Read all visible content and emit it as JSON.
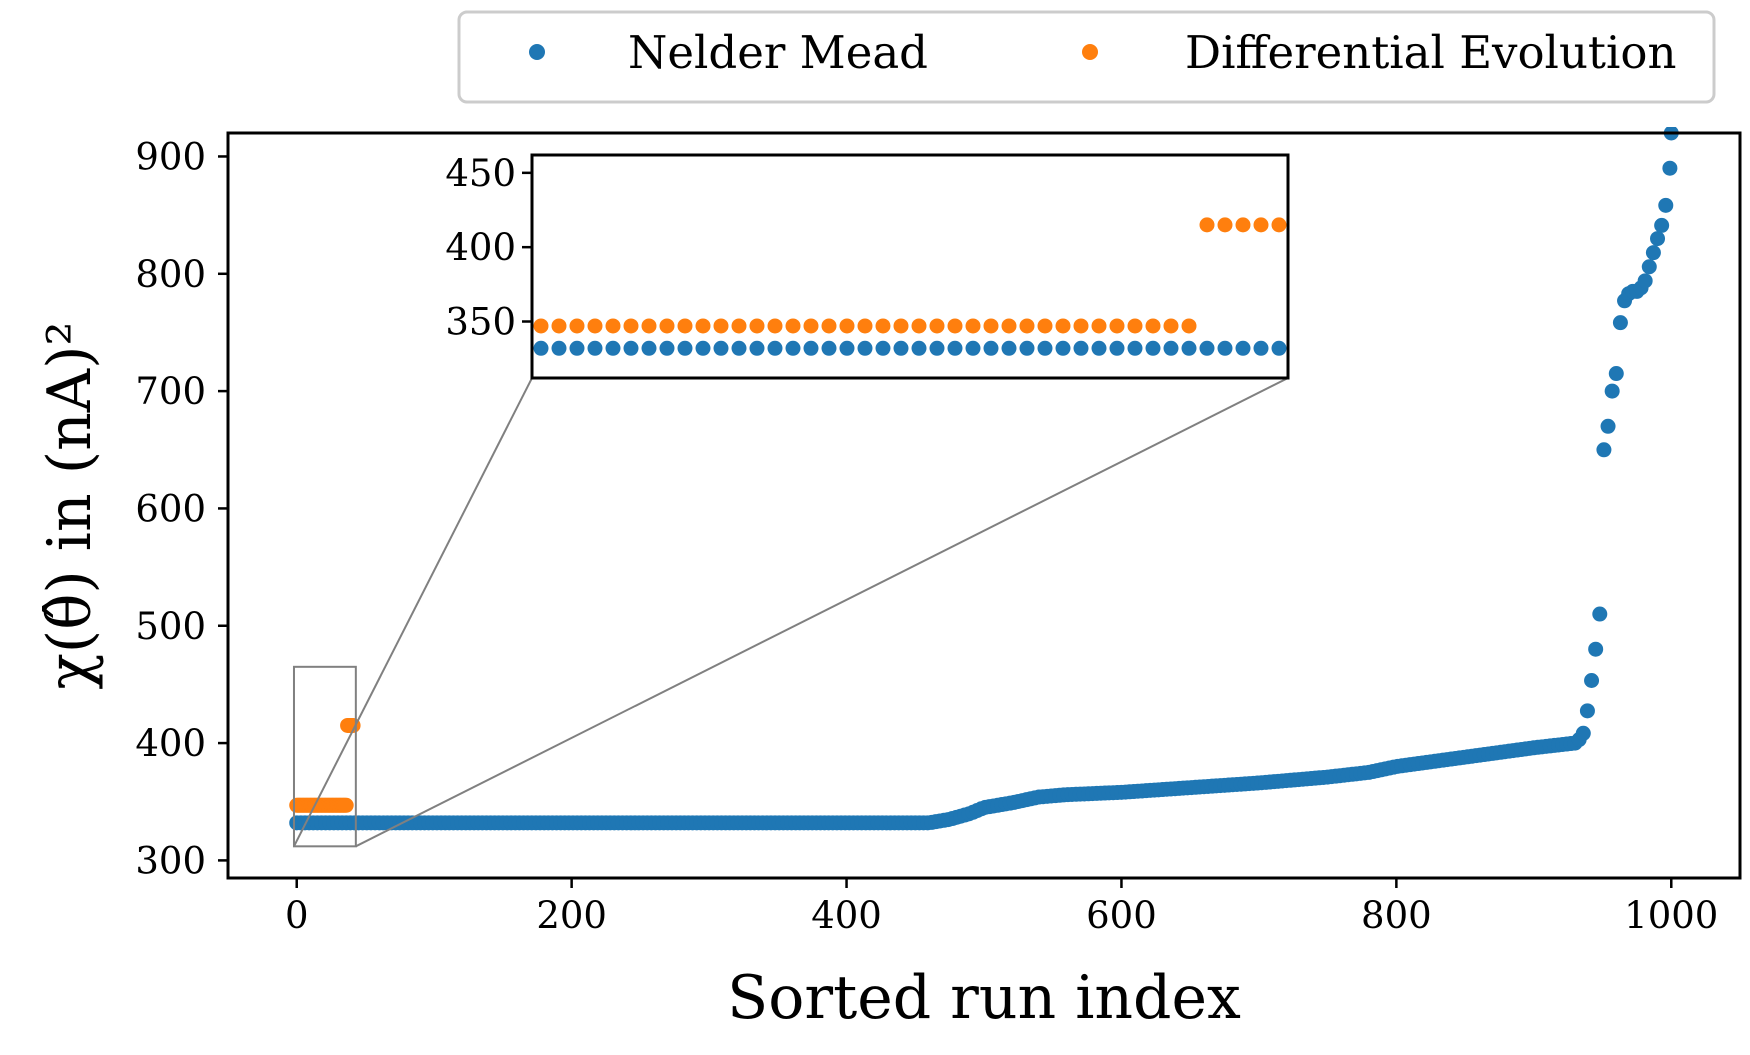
{
  "chart_data": {
    "type": "scatter",
    "xlabel": "Sorted run index",
    "ylabel": "χ(θ̂) in (nA)²",
    "xlim": [
      -50,
      1050
    ],
    "ylim": [
      285,
      920
    ],
    "xticks": [
      0,
      200,
      400,
      600,
      800,
      1000
    ],
    "yticks": [
      300,
      400,
      500,
      600,
      700,
      800,
      900
    ],
    "legend": {
      "placement": "top, outside plot",
      "entries": [
        {
          "name": "Nelder Mead",
          "color": "#1f77b4"
        },
        {
          "name": "Differential Evolution",
          "color": "#ff7f0e"
        }
      ]
    },
    "series": [
      {
        "name": "Nelder Mead",
        "color": "#1f77b4",
        "curve": [
          [
            0,
            332
          ],
          [
            100,
            332
          ],
          [
            200,
            332
          ],
          [
            300,
            332
          ],
          [
            400,
            332
          ],
          [
            460,
            332
          ],
          [
            475,
            335
          ],
          [
            490,
            340
          ],
          [
            500,
            345
          ],
          [
            520,
            349
          ],
          [
            540,
            354
          ],
          [
            560,
            356
          ],
          [
            600,
            358
          ],
          [
            650,
            362
          ],
          [
            700,
            366
          ],
          [
            750,
            371
          ],
          [
            780,
            375
          ],
          [
            800,
            380
          ],
          [
            850,
            388
          ],
          [
            900,
            396
          ],
          [
            930,
            400
          ],
          [
            935,
            405
          ],
          [
            938,
            415
          ],
          [
            940,
            440
          ],
          [
            943,
            460
          ],
          [
            946,
            490
          ],
          [
            948,
            510
          ],
          [
            950,
            600
          ],
          [
            951,
            650
          ],
          [
            954,
            670
          ],
          [
            957,
            700
          ],
          [
            960,
            715
          ],
          [
            962,
            750
          ],
          [
            965,
            775
          ],
          [
            970,
            785
          ],
          [
            975,
            785
          ],
          [
            980,
            790
          ],
          [
            985,
            810
          ],
          [
            990,
            830
          ],
          [
            994,
            845
          ],
          [
            997,
            865
          ],
          [
            999,
            890
          ],
          [
            1000,
            920
          ]
        ]
      },
      {
        "name": "Differential Evolution",
        "color": "#ff7f0e",
        "points": [
          [
            0,
            347
          ],
          [
            1,
            347
          ],
          [
            2,
            347
          ],
          [
            3,
            347
          ],
          [
            4,
            347
          ],
          [
            5,
            347
          ],
          [
            6,
            347
          ],
          [
            7,
            347
          ],
          [
            8,
            347
          ],
          [
            9,
            347
          ],
          [
            10,
            347
          ],
          [
            11,
            347
          ],
          [
            12,
            347
          ],
          [
            13,
            347
          ],
          [
            14,
            347
          ],
          [
            15,
            347
          ],
          [
            16,
            347
          ],
          [
            17,
            347
          ],
          [
            18,
            347
          ],
          [
            19,
            347
          ],
          [
            20,
            347
          ],
          [
            21,
            347
          ],
          [
            22,
            347
          ],
          [
            23,
            347
          ],
          [
            24,
            347
          ],
          [
            25,
            347
          ],
          [
            26,
            347
          ],
          [
            27,
            347
          ],
          [
            28,
            347
          ],
          [
            29,
            347
          ],
          [
            30,
            347
          ],
          [
            31,
            347
          ],
          [
            32,
            347
          ],
          [
            33,
            347
          ],
          [
            34,
            347
          ],
          [
            35,
            347
          ],
          [
            36,
            347
          ],
          [
            37,
            415
          ],
          [
            38,
            415
          ],
          [
            39,
            415
          ],
          [
            40,
            415
          ],
          [
            41,
            415
          ]
        ]
      }
    ],
    "inset": {
      "xlim": [
        -0.5,
        41.5
      ],
      "ylim": [
        312,
        462
      ],
      "yticks": [
        350,
        400,
        450
      ],
      "nelder_mead_level": 332,
      "source_region": {
        "x": [
          -2,
          43
        ],
        "y": [
          312,
          465
        ]
      }
    }
  }
}
